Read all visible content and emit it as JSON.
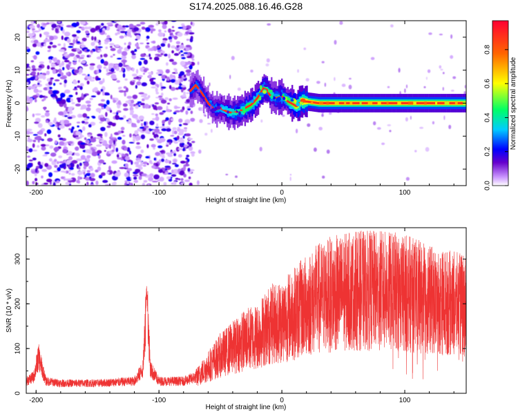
{
  "figure": {
    "title": "S174.2025.088.16.46.G28"
  },
  "chart_data": [
    {
      "type": "heatmap",
      "title": "S174.2025.088.16.46.G28",
      "xlabel": "Height of straight line (km)",
      "ylabel": "Frequency (Hz)",
      "xlim": [
        -208,
        150
      ],
      "ylim": [
        -25,
        25
      ],
      "xticks": [
        -200,
        -100,
        0,
        100
      ],
      "yticks": [
        -20,
        -10,
        0,
        10,
        20
      ],
      "colorbar": {
        "label": "Normalized spectral amplitude",
        "range": [
          0,
          0.97
        ],
        "ticks": [
          0.0,
          0.2,
          0.4,
          0.6,
          0.8
        ],
        "colormap": [
          "#ffffff",
          "#cc99ff",
          "#6600cc",
          "#0000ff",
          "#00ccff",
          "#00ff66",
          "#ffff00",
          "#ff6600",
          "#ff0033"
        ]
      },
      "noise_region_x": [
        -208,
        -72
      ],
      "signal_ridge": {
        "x": [
          -75,
          -70,
          -65,
          -60,
          -55,
          -50,
          -45,
          -40,
          -35,
          -30,
          -25,
          -20,
          -15,
          -12,
          -10,
          -5,
          0,
          5,
          10,
          12,
          15,
          20,
          30,
          50,
          80,
          110,
          130,
          150
        ],
        "y": [
          3.5,
          5.5,
          3.0,
          0.0,
          -2.0,
          -1.5,
          -2.5,
          -3.0,
          -2.5,
          -1.5,
          -0.5,
          1.5,
          4.5,
          4.0,
          2.5,
          1.5,
          2.0,
          0.5,
          -0.5,
          -1.0,
          0.5,
          0.5,
          0.0,
          0.0,
          0.0,
          0.0,
          0.0,
          0.0
        ],
        "amplitude": [
          0.3,
          0.35,
          0.3,
          0.3,
          0.35,
          0.4,
          0.45,
          0.5,
          0.55,
          0.6,
          0.65,
          0.7,
          0.6,
          0.55,
          0.5,
          0.55,
          0.6,
          0.65,
          0.75,
          0.8,
          0.85,
          0.9,
          0.95,
          0.95,
          0.95,
          0.95,
          0.95,
          0.95
        ]
      }
    },
    {
      "type": "line",
      "xlabel": "Height of straight line (km)",
      "ylabel": "SNR (10 * v/v)",
      "xlim": [
        -208,
        150
      ],
      "ylim": [
        0,
        370
      ],
      "xticks": [
        -200,
        -100,
        0,
        100
      ],
      "yticks": [
        0,
        100,
        200,
        300
      ],
      "color": "#ee3333",
      "envelope": {
        "x": [
          -208,
          -202,
          -198,
          -192,
          -180,
          -150,
          -120,
          -113,
          -110,
          -107,
          -100,
          -80,
          -70,
          -60,
          -50,
          -40,
          -30,
          -20,
          -10,
          0,
          10,
          20,
          30,
          40,
          60,
          80,
          100,
          110,
          120,
          130,
          140,
          150
        ],
        "y": [
          30,
          40,
          90,
          30,
          25,
          25,
          30,
          60,
          250,
          60,
          30,
          30,
          40,
          70,
          100,
          120,
          140,
          150,
          180,
          190,
          210,
          230,
          250,
          260,
          270,
          270,
          265,
          255,
          245,
          240,
          235,
          230
        ]
      }
    }
  ]
}
